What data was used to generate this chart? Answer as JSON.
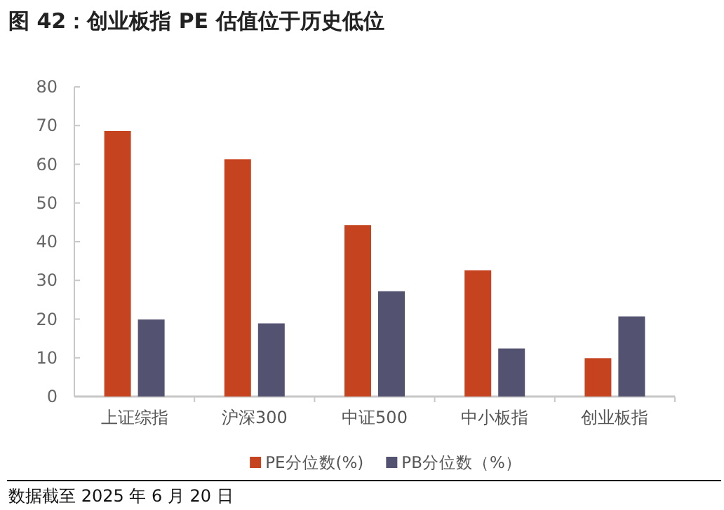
{
  "chart_data": {
    "type": "bar",
    "title": "图 42：创业板指 PE 估值位于历史低位",
    "categories": [
      "上证综指",
      "沪深300",
      "中证500",
      "中小板指",
      "创业板指"
    ],
    "series": [
      {
        "name": "PE分位数(%)",
        "color": "#c5441f",
        "values": [
          68.6,
          61.3,
          44.3,
          32.6,
          9.9
        ]
      },
      {
        "name": "PB分位数（%）",
        "color": "#535271",
        "values": [
          19.9,
          18.9,
          27.2,
          12.4,
          20.7
        ]
      }
    ],
    "ylim": [
      0,
      80
    ],
    "yticks": [
      0,
      10,
      20,
      30,
      40,
      50,
      60,
      70,
      80
    ],
    "grid": false,
    "legend": "bottom",
    "annotations": [
      "数据截至 2025 年 6 月 20 日"
    ]
  }
}
